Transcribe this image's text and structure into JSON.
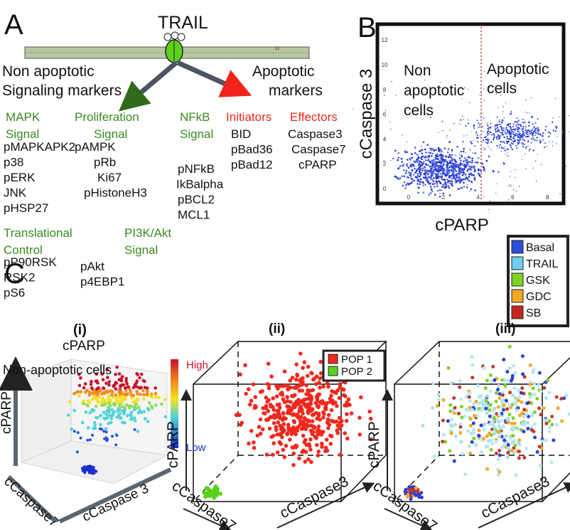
{
  "panel_a": {
    "label": "A",
    "ligand": "TRAIL",
    "left_heading": [
      "Non apoptotic",
      "Signaling markers"
    ],
    "right_heading": [
      "Apoptotic",
      "markers"
    ],
    "groups": [
      {
        "title": [
          "MAPK",
          "Signal"
        ],
        "items": [
          "pMAPKAPK2",
          "p38",
          "pERK",
          "JNK",
          "pHSP27"
        ]
      },
      {
        "title": [
          "Proliferation",
          "Signal"
        ],
        "items": [
          "pAMPK",
          "pRb",
          "Ki67",
          "pHistoneH3"
        ]
      },
      {
        "title": [
          "NFkB",
          "Signal"
        ],
        "items": [
          "pNFkB",
          "IkBalpha",
          "pBCL2",
          "MCL1"
        ]
      },
      {
        "title": [
          "Initiators"
        ],
        "items": [
          "BID",
          "pBad36",
          "pBad12"
        ]
      },
      {
        "title": [
          "Effectors"
        ],
        "items": [
          "Caspase3",
          "Caspase7",
          "cPARP"
        ]
      },
      {
        "title": [
          "Translational",
          "Control"
        ],
        "items": [
          "pP90RSK",
          "RSK2",
          "pS6"
        ]
      },
      {
        "title": [
          "PI3K/Akt",
          "Signal"
        ],
        "items": [
          "pAkt",
          "p4EBP1"
        ]
      }
    ]
  },
  "panel_b": {
    "label": "B",
    "x_label": "cPARP",
    "y_label": "cCaspase 3",
    "xticks": [
      0,
      2,
      4,
      6,
      8
    ],
    "yticks": [
      0,
      2,
      4,
      6,
      8,
      10,
      12
    ],
    "left_region": [
      "Non",
      "apoptotic",
      "cells"
    ],
    "right_region": [
      "Apoptotic",
      "cells"
    ]
  },
  "panel_c": {
    "label": "C",
    "i": {
      "label": "(i)",
      "color_by": "cPARP",
      "subtitle": "Non-apoptotic cells",
      "high": "High",
      "low": "Low",
      "axes": [
        "cPARP",
        "cCaspase7",
        "cCaspase 3"
      ]
    },
    "ii": {
      "label": "(ii)",
      "legend": [
        "POP 1",
        "POP 2"
      ],
      "axes": [
        "cPARP",
        "cCaspase7",
        "cCaspase3"
      ]
    },
    "iii": {
      "label": "(iii)",
      "legend": [
        "Basal",
        "TRAIL",
        "GSK",
        "GDC",
        "SB"
      ],
      "axes": [
        "cPARP",
        "cCaspase7",
        "cCaspase3"
      ]
    }
  }
}
